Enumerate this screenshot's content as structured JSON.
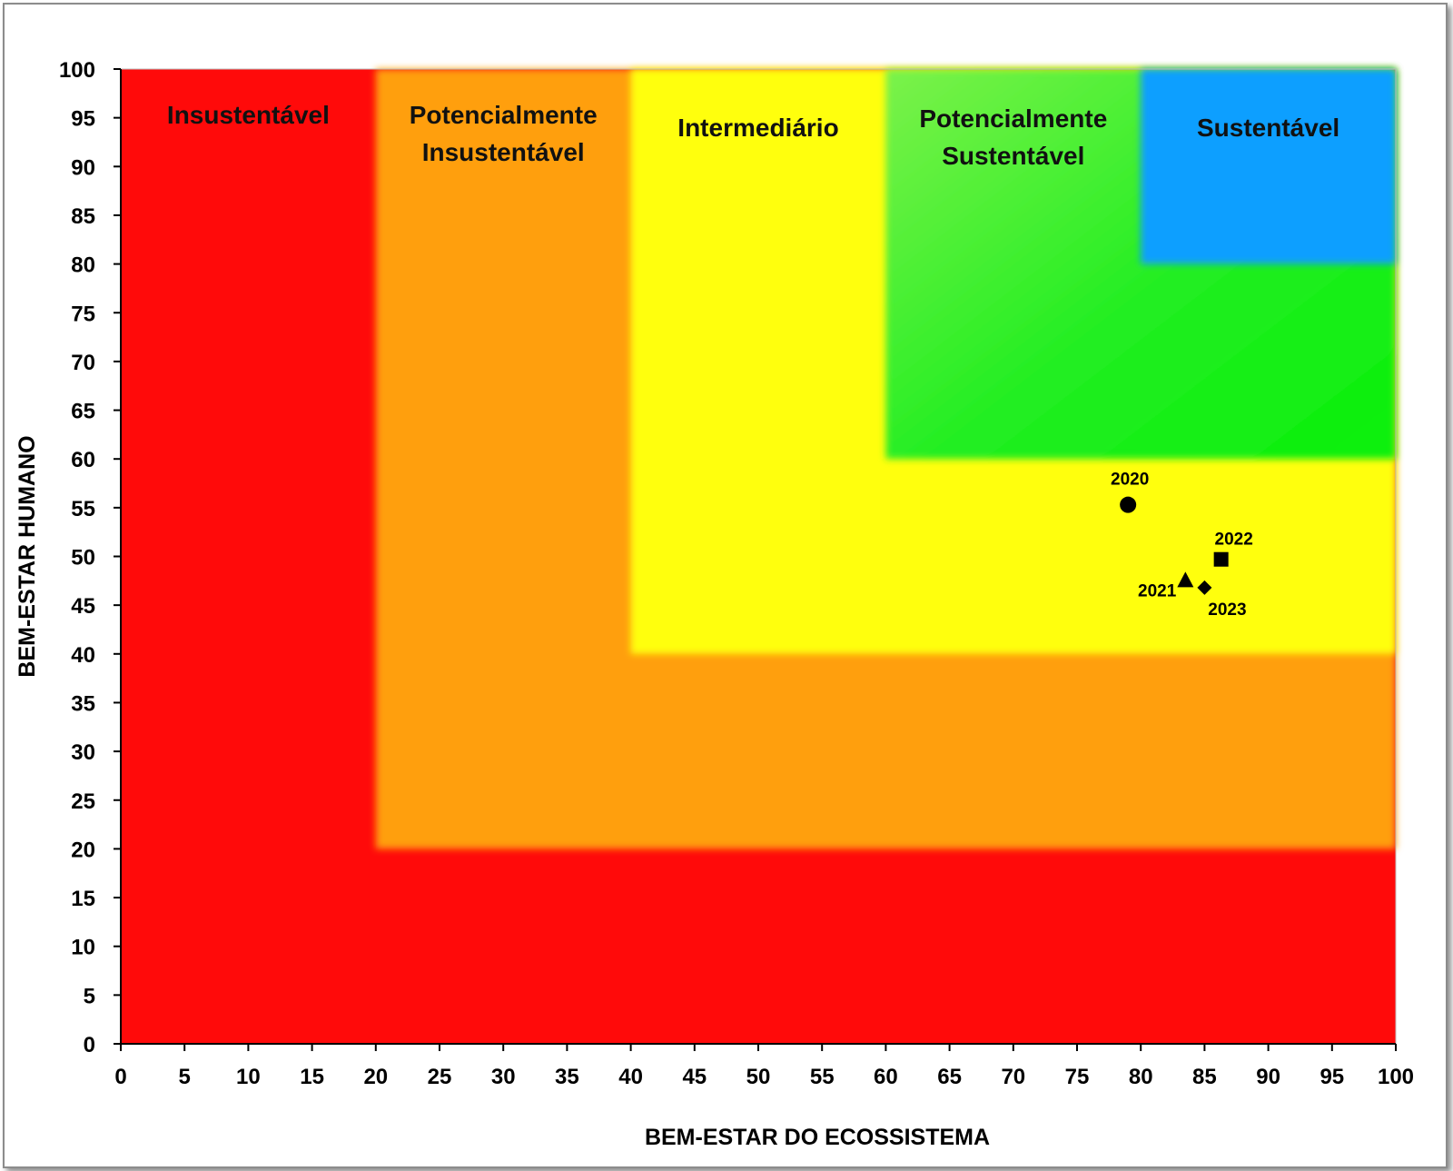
{
  "chart_data": {
    "type": "scatter",
    "xlabel": "BEM-ESTAR DO ECOSSISTEMA",
    "ylabel": "BEM-ESTAR HUMANO",
    "xlim": [
      0,
      100
    ],
    "ylim": [
      0,
      100
    ],
    "xticks": [
      0,
      5,
      10,
      15,
      20,
      25,
      30,
      35,
      40,
      45,
      50,
      55,
      60,
      65,
      70,
      75,
      80,
      85,
      90,
      95,
      100
    ],
    "yticks": [
      0,
      5,
      10,
      15,
      20,
      25,
      30,
      35,
      40,
      45,
      50,
      55,
      60,
      65,
      70,
      75,
      80,
      85,
      90,
      95,
      100
    ],
    "grid": false,
    "zones": [
      {
        "label": [
          "Insustentável"
        ],
        "min": 0,
        "max": 20,
        "color": "#ff0a0a"
      },
      {
        "label": [
          "Potencialmente",
          "Insustentável"
        ],
        "min": 20,
        "max": 40,
        "color": "#ff9f0a"
      },
      {
        "label": [
          "Intermediário"
        ],
        "min": 40,
        "max": 60,
        "color": "#ffff0a"
      },
      {
        "label": [
          "Potencialmente",
          "Sustentável"
        ],
        "min": 60,
        "max": 80,
        "color": "#22ee22"
      },
      {
        "label": [
          "Sustentável"
        ],
        "min": 80,
        "max": 100,
        "color": "#0a9fff"
      }
    ],
    "points": [
      {
        "label": "2020",
        "x": 79,
        "y": 55.3,
        "marker": "circle"
      },
      {
        "label": "2021",
        "x": 83.5,
        "y": 47.5,
        "marker": "triangle"
      },
      {
        "label": "2022",
        "x": 86.3,
        "y": 49.7,
        "marker": "square"
      },
      {
        "label": "2023",
        "x": 85,
        "y": 46.8,
        "marker": "diamond"
      }
    ]
  }
}
